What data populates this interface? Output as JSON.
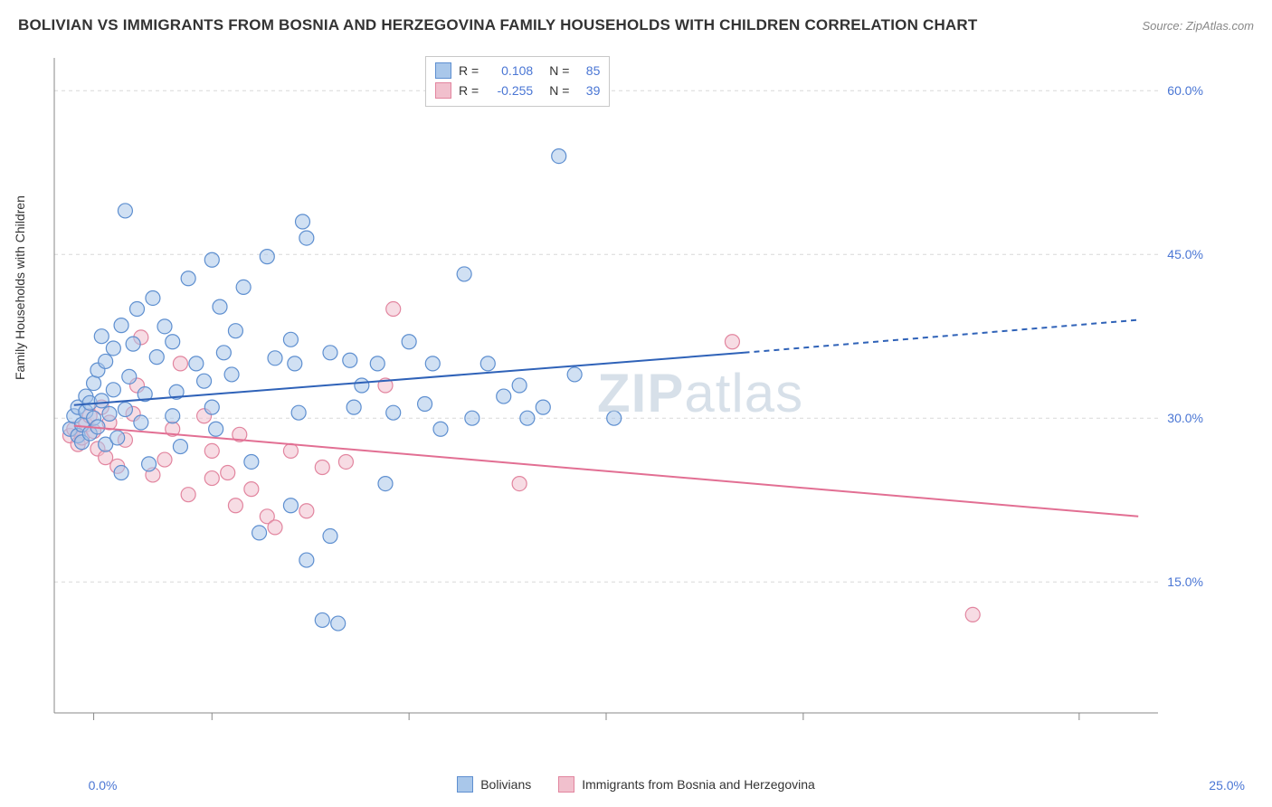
{
  "title": "BOLIVIAN VS IMMIGRANTS FROM BOSNIA AND HERZEGOVINA FAMILY HOUSEHOLDS WITH CHILDREN CORRELATION CHART",
  "source": "Source: ZipAtlas.com",
  "y_axis_label": "Family Households with Children",
  "watermark": "ZIPatlas",
  "chart": {
    "type": "scatter",
    "background_color": "#ffffff",
    "grid_color": "#d8d8d8",
    "axis_label_color": "#4a76d4",
    "tick_font_size": 14,
    "x_domain": [
      -1.0,
      27.0
    ],
    "y_domain": [
      3.0,
      63.0
    ],
    "x_ticks_labeled": [
      {
        "v": 0.0,
        "label": "0.0%"
      },
      {
        "v": 25.0,
        "label": "25.0%"
      }
    ],
    "x_ticks_unlabeled": [
      3.0,
      8.0,
      13.0,
      18.0
    ],
    "y_ticks": [
      {
        "v": 15.0,
        "label": "15.0%"
      },
      {
        "v": 30.0,
        "label": "30.0%"
      },
      {
        "v": 45.0,
        "label": "45.0%"
      },
      {
        "v": 60.0,
        "label": "60.0%"
      }
    ],
    "marker_radius": 8,
    "marker_opacity": 0.55,
    "marker_stroke_width": 1.2,
    "line_width": 2.0
  },
  "series": {
    "bolivians": {
      "label": "Bolivians",
      "color_fill": "#a9c7ea",
      "color_stroke": "#5e8fd0",
      "line_color": "#2f62b8",
      "R": "0.108",
      "N": "85",
      "trend": {
        "x1": -0.5,
        "y1": 31.2,
        "x_solid_end": 16.5,
        "y_solid_end": 36.0,
        "x2": 26.5,
        "y2": 39.0
      },
      "points": [
        [
          -0.6,
          29.0
        ],
        [
          -0.5,
          30.2
        ],
        [
          -0.4,
          28.4
        ],
        [
          -0.4,
          31.0
        ],
        [
          -0.3,
          27.8
        ],
        [
          -0.3,
          29.4
        ],
        [
          -0.2,
          30.6
        ],
        [
          -0.2,
          32.0
        ],
        [
          -0.1,
          28.6
        ],
        [
          -0.1,
          31.4
        ],
        [
          0.0,
          30.0
        ],
        [
          0.0,
          33.2
        ],
        [
          0.1,
          29.2
        ],
        [
          0.1,
          34.4
        ],
        [
          0.2,
          31.6
        ],
        [
          0.3,
          27.6
        ],
        [
          0.3,
          35.2
        ],
        [
          0.4,
          30.4
        ],
        [
          0.5,
          32.6
        ],
        [
          0.6,
          28.2
        ],
        [
          0.5,
          36.4
        ],
        [
          0.7,
          25.0
        ],
        [
          0.8,
          30.8
        ],
        [
          0.9,
          33.8
        ],
        [
          1.0,
          36.8
        ],
        [
          0.8,
          49.0
        ],
        [
          0.2,
          37.5
        ],
        [
          1.2,
          29.6
        ],
        [
          1.3,
          32.2
        ],
        [
          1.5,
          41.0
        ],
        [
          1.6,
          35.6
        ],
        [
          1.8,
          38.4
        ],
        [
          1.4,
          25.8
        ],
        [
          2.0,
          37.0
        ],
        [
          2.1,
          32.4
        ],
        [
          2.2,
          27.4
        ],
        [
          2.4,
          42.8
        ],
        [
          2.0,
          30.2
        ],
        [
          2.6,
          35.0
        ],
        [
          2.8,
          33.4
        ],
        [
          3.0,
          31.0
        ],
        [
          3.2,
          40.2
        ],
        [
          3.3,
          36.0
        ],
        [
          3.1,
          29.0
        ],
        [
          3.6,
          38.0
        ],
        [
          3.8,
          42.0
        ],
        [
          3.5,
          34.0
        ],
        [
          4.4,
          44.8
        ],
        [
          4.6,
          35.5
        ],
        [
          4.0,
          26.0
        ],
        [
          4.2,
          19.5
        ],
        [
          5.0,
          37.2
        ],
        [
          5.2,
          30.5
        ],
        [
          5.3,
          48.0
        ],
        [
          5.4,
          46.5
        ],
        [
          5.1,
          35.0
        ],
        [
          5.0,
          22.0
        ],
        [
          5.4,
          17.0
        ],
        [
          6.0,
          36.0
        ],
        [
          5.8,
          11.5
        ],
        [
          6.2,
          11.2
        ],
        [
          3.0,
          44.5
        ],
        [
          6.5,
          35.3
        ],
        [
          6.6,
          31.0
        ],
        [
          6.8,
          33.0
        ],
        [
          7.2,
          35.0
        ],
        [
          7.4,
          24.0
        ],
        [
          7.6,
          30.5
        ],
        [
          6.0,
          19.2
        ],
        [
          8.4,
          31.3
        ],
        [
          8.6,
          35.0
        ],
        [
          8.0,
          37.0
        ],
        [
          9.4,
          43.2
        ],
        [
          8.8,
          29.0
        ],
        [
          9.6,
          30.0
        ],
        [
          10.0,
          35.0
        ],
        [
          10.4,
          32.0
        ],
        [
          10.8,
          33.0
        ],
        [
          11.4,
          31.0
        ],
        [
          11.8,
          54.0
        ],
        [
          12.2,
          34.0
        ],
        [
          11.0,
          30.0
        ],
        [
          13.2,
          30.0
        ],
        [
          0.7,
          38.5
        ],
        [
          1.1,
          40.0
        ]
      ]
    },
    "bosnia": {
      "label": "Immigrants from Bosnia and Herzegovina",
      "color_fill": "#f1c0cd",
      "color_stroke": "#e2859f",
      "line_color": "#e26f93",
      "R": "-0.255",
      "N": "39",
      "trend": {
        "x1": -0.5,
        "y1": 29.3,
        "x2": 26.5,
        "y2": 21.0
      },
      "points": [
        [
          -0.6,
          28.4
        ],
        [
          -0.5,
          29.0
        ],
        [
          -0.4,
          27.6
        ],
        [
          -0.3,
          28.2
        ],
        [
          -0.2,
          29.4
        ],
        [
          -0.1,
          30.2
        ],
        [
          0.0,
          28.8
        ],
        [
          0.1,
          27.2
        ],
        [
          0.2,
          31.0
        ],
        [
          0.3,
          26.4
        ],
        [
          0.4,
          29.6
        ],
        [
          0.6,
          25.6
        ],
        [
          0.8,
          28.0
        ],
        [
          1.0,
          30.4
        ],
        [
          1.2,
          37.4
        ],
        [
          1.1,
          33.0
        ],
        [
          1.5,
          24.8
        ],
        [
          1.8,
          26.2
        ],
        [
          2.0,
          29.0
        ],
        [
          2.2,
          35.0
        ],
        [
          2.4,
          23.0
        ],
        [
          2.8,
          30.2
        ],
        [
          3.0,
          27.0
        ],
        [
          3.0,
          24.5
        ],
        [
          3.4,
          25.0
        ],
        [
          3.6,
          22.0
        ],
        [
          3.7,
          28.5
        ],
        [
          4.0,
          23.5
        ],
        [
          4.4,
          21.0
        ],
        [
          4.6,
          20.0
        ],
        [
          5.0,
          27.0
        ],
        [
          5.4,
          21.5
        ],
        [
          5.8,
          25.5
        ],
        [
          6.4,
          26.0
        ],
        [
          7.4,
          33.0
        ],
        [
          7.6,
          40.0
        ],
        [
          10.8,
          24.0
        ],
        [
          16.2,
          37.0
        ],
        [
          22.3,
          12.0
        ]
      ]
    }
  }
}
